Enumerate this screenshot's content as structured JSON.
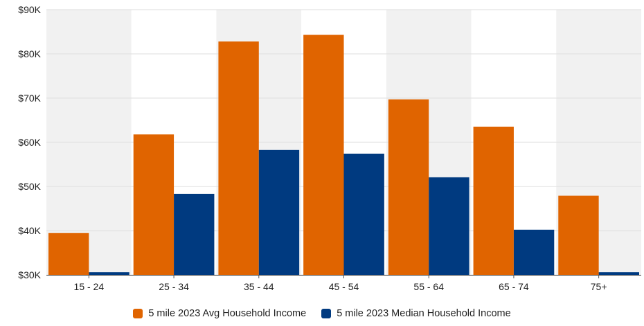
{
  "chart_data": {
    "type": "bar",
    "categories": [
      "15 - 24",
      "25 - 34",
      "35 - 44",
      "45 - 54",
      "55 - 64",
      "65 - 74",
      "75+"
    ],
    "series": [
      {
        "name": "5 mile 2023 Avg Household Income",
        "color": "#e06400",
        "values": [
          39500,
          61800,
          82800,
          84300,
          69700,
          63500,
          47900
        ]
      },
      {
        "name": "5 mile 2023 Median Household Income",
        "color": "#003a80",
        "values": [
          30600,
          48300,
          58300,
          57400,
          52100,
          40200,
          30600
        ]
      }
    ],
    "ylim": [
      30000,
      90000
    ],
    "yticks": [
      30000,
      40000,
      50000,
      60000,
      70000,
      80000,
      90000
    ],
    "ytick_labels": [
      "$30K",
      "$40K",
      "$50K",
      "$60K",
      "$70K",
      "$80K",
      "$90K"
    ],
    "title": "",
    "xlabel": "",
    "ylabel": "",
    "grid": true,
    "category_band_colors": [
      "#f1f1f1",
      "#ffffff"
    ],
    "legend_position": "bottom"
  }
}
